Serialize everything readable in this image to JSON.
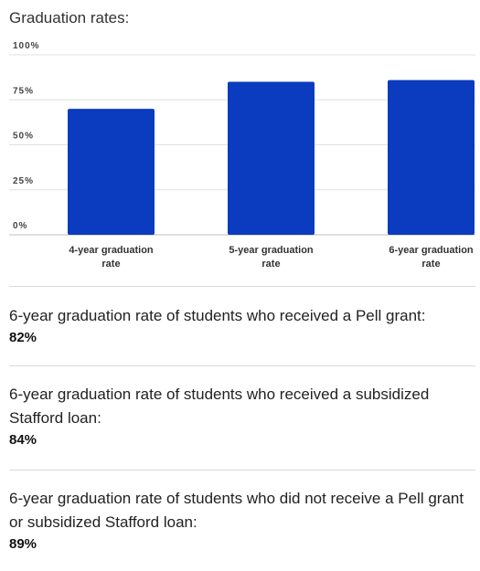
{
  "title": "Graduation rates:",
  "chart_data": {
    "type": "bar",
    "categories": [
      "4-year graduation rate",
      "5-year graduation rate",
      "6-year graduation rate"
    ],
    "values": [
      70,
      85,
      86
    ],
    "yticks": [
      "0%",
      "25%",
      "50%",
      "75%",
      "100%"
    ],
    "ylim": [
      0,
      100
    ],
    "grid": true,
    "bar_color": "#0b3bbf"
  },
  "stats": [
    {
      "label": "6-year graduation rate of students who received a Pell grant:",
      "value": "82%"
    },
    {
      "label": "6-year graduation rate of students who received a subsidized Stafford loan:",
      "value": "84%"
    },
    {
      "label": "6-year graduation rate of students who did not receive a Pell grant or subsidized Stafford loan:",
      "value": "89%"
    }
  ]
}
